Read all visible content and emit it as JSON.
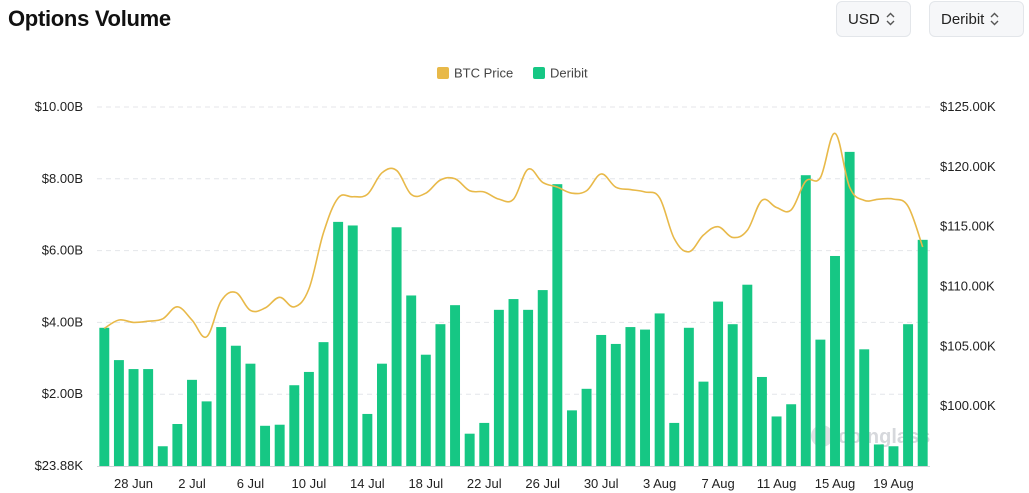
{
  "header": {
    "title": "Options Volume",
    "currency_select": "USD",
    "exchange_select": "Deribit"
  },
  "watermark": "coinglass",
  "chart_data": {
    "type": "bar",
    "title": "Options Volume",
    "legend": [
      {
        "name": "BTC Price",
        "color": "#e8b949"
      },
      {
        "name": "Deribit",
        "color": "#16c784"
      }
    ],
    "legend_position": "top-center",
    "grid": true,
    "y_left": {
      "ticks": [
        "$23.88K",
        "$2.00B",
        "$4.00B",
        "$6.00B",
        "$8.00B",
        "$10.00B"
      ],
      "range": [
        0,
        10000000000
      ]
    },
    "y_right": {
      "ticks": [
        "$100.00K",
        "$105.00K",
        "$110.00K",
        "$115.00K",
        "$120.00K",
        "$125.00K"
      ],
      "range": [
        95000,
        125000
      ]
    },
    "x_tick_labels": [
      "28 Jun",
      "2 Jul",
      "6 Jul",
      "10 Jul",
      "14 Jul",
      "18 Jul",
      "22 Jul",
      "26 Jul",
      "30 Jul",
      "3 Aug",
      "7 Aug",
      "11 Aug",
      "15 Aug",
      "19 Aug"
    ],
    "x_tick_index": [
      2,
      6,
      10,
      14,
      18,
      22,
      26,
      30,
      34,
      38,
      42,
      46,
      50,
      54
    ],
    "series": [
      {
        "name": "Deribit",
        "type": "bar",
        "color": "#16c784",
        "axis": "left",
        "values": [
          3.85,
          2.95,
          2.7,
          2.7,
          0.55,
          1.17,
          2.4,
          1.8,
          3.87,
          3.35,
          2.85,
          1.12,
          1.15,
          2.25,
          2.62,
          3.45,
          6.8,
          6.7,
          1.45,
          2.85,
          6.65,
          4.75,
          3.1,
          3.95,
          4.48,
          0.9,
          1.2,
          4.35,
          4.65,
          4.35,
          4.9,
          7.85,
          1.55,
          2.15,
          3.65,
          3.4,
          3.87,
          3.8,
          4.25,
          1.2,
          3.85,
          2.35,
          4.58,
          3.95,
          5.05,
          2.48,
          1.38,
          1.72,
          8.1,
          3.52,
          5.85,
          8.75,
          3.25,
          0.6,
          0.55,
          3.95,
          6.3
        ],
        "unit": "B"
      },
      {
        "name": "BTC Price",
        "type": "line",
        "color": "#e8b949",
        "axis": "right",
        "values": [
          106500,
          107200,
          107000,
          107100,
          107300,
          108300,
          107200,
          105800,
          108800,
          109500,
          108000,
          108200,
          109100,
          108300,
          109800,
          114500,
          117400,
          117500,
          117700,
          119500,
          119700,
          117700,
          117800,
          118900,
          119000,
          118000,
          117900,
          117300,
          117300,
          119800,
          118700,
          118300,
          117800,
          118000,
          119400,
          118300,
          118100,
          117900,
          117400,
          114000,
          112900,
          114300,
          115000,
          114100,
          114700,
          117200,
          116600,
          116400,
          118800,
          119100,
          122800,
          118300,
          117200,
          117300,
          117300,
          116700,
          113300
        ]
      }
    ]
  }
}
